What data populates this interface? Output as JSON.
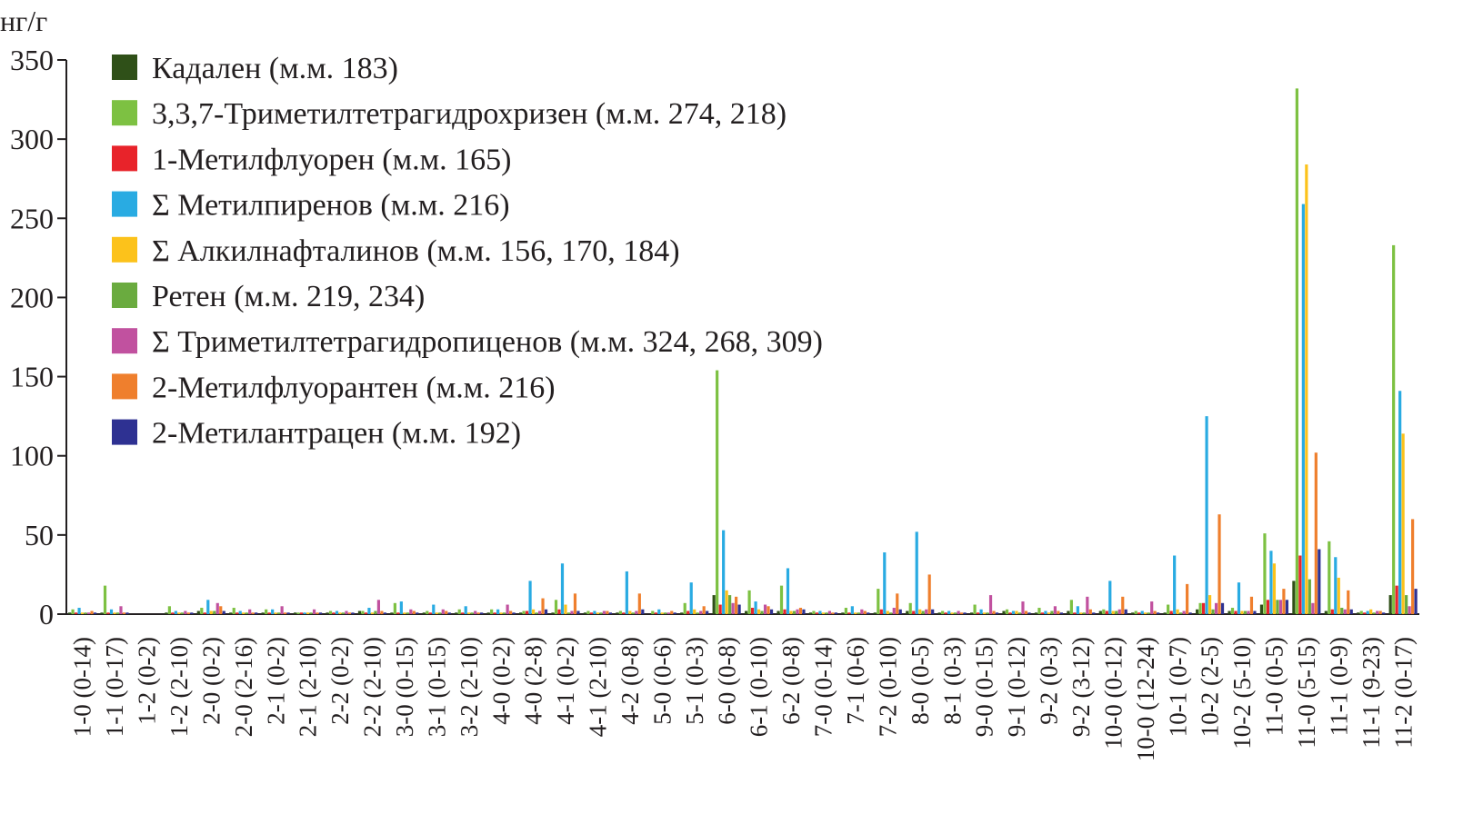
{
  "chart_data": {
    "type": "bar",
    "title": "",
    "xlabel": "",
    "ylabel": "нг/г",
    "ylim": [
      0,
      350
    ],
    "yticks": [
      0,
      50,
      100,
      150,
      200,
      250,
      300,
      350
    ],
    "grid": false,
    "legend_position": "top-left",
    "categories": [
      "1-0 (0-14)",
      "1-1 (0-17)",
      "1-2 (0-2)",
      "1-2 (2-10)",
      "2-0 (0-2)",
      "2-0 (2-16)",
      "2-1 (0-2)",
      "2-1 (2-10)",
      "2-2 (0-2)",
      "2-2 (2-10)",
      "3-0 (0-15)",
      "3-1 (0-15)",
      "3-2 (2-10)",
      "4-0 (0-2)",
      "4-0 (2-8)",
      "4-1 (0-2)",
      "4-1 (2-10)",
      "4-2 (0-8)",
      "5-0 (0-6)",
      "5-1 (0-3)",
      "6-0 (0-8)",
      "6-1 (0-10)",
      "6-2 (0-8)",
      "7-0 (0-14)",
      "7-1 (0-6)",
      "7-2 (0-10)",
      "8-0 (0-5)",
      "8-1 (0-3)",
      "9-0 (0-15)",
      "9-1 (0-12)",
      "9-2 (0-3)",
      "9-2 (3-12)",
      "10-0 (0-12)",
      "10-0 (12-24)",
      "10-1 (0-7)",
      "10-2 (2-5)",
      "10-2 (5-10)",
      "11-0 (0-5)",
      "11-0 (5-15)",
      "11-1 (0-9)",
      "11-1 (9-23)",
      "11-2 (0-17)"
    ],
    "series": [
      {
        "name": "Кадален (м.м. 183)",
        "color": "#2f5018",
        "values": [
          1,
          1,
          0,
          1,
          2,
          1,
          1,
          1,
          1,
          2,
          1,
          1,
          1,
          1,
          1,
          1,
          1,
          1,
          0,
          1,
          12,
          2,
          2,
          1,
          1,
          1,
          2,
          1,
          1,
          2,
          1,
          2,
          2,
          1,
          1,
          3,
          2,
          6,
          21,
          2,
          1,
          12
        ]
      },
      {
        "name": "3,3,7-Триметилтетрагидрохризен (м.м. 274, 218)",
        "color": "#7dc142",
        "values": [
          3,
          18,
          0,
          5,
          4,
          4,
          3,
          1,
          2,
          2,
          7,
          2,
          3,
          3,
          2,
          9,
          2,
          2,
          2,
          7,
          154,
          15,
          18,
          2,
          4,
          16,
          7,
          2,
          6,
          3,
          4,
          9,
          3,
          2,
          6,
          7,
          4,
          51,
          332,
          46,
          2,
          233
        ]
      },
      {
        "name": "1-Метилфлуорен (м.м. 165)",
        "color": "#e8232a",
        "values": [
          1,
          1,
          0,
          1,
          1,
          1,
          1,
          1,
          1,
          1,
          1,
          1,
          1,
          1,
          2,
          3,
          1,
          1,
          1,
          2,
          6,
          4,
          3,
          1,
          1,
          3,
          2,
          1,
          1,
          1,
          1,
          1,
          2,
          1,
          2,
          7,
          2,
          9,
          37,
          3,
          1,
          18
        ]
      },
      {
        "name": "Σ Метилпиренов (м.м. 216)",
        "color": "#29abe2",
        "values": [
          4,
          3,
          0,
          2,
          9,
          2,
          3,
          1,
          2,
          4,
          8,
          6,
          5,
          3,
          21,
          32,
          2,
          27,
          3,
          20,
          53,
          8,
          29,
          2,
          5,
          39,
          52,
          2,
          3,
          2,
          2,
          5,
          21,
          2,
          37,
          125,
          20,
          40,
          259,
          36,
          2,
          141
        ]
      },
      {
        "name": "Σ Алкилнафталинов (м.м. 156, 170, 184)",
        "color": "#fcc21b",
        "values": [
          1,
          1,
          0,
          1,
          2,
          1,
          1,
          1,
          1,
          1,
          1,
          1,
          1,
          1,
          3,
          6,
          1,
          2,
          1,
          3,
          15,
          3,
          2,
          1,
          1,
          2,
          3,
          1,
          1,
          2,
          1,
          1,
          2,
          1,
          3,
          12,
          2,
          32,
          284,
          23,
          3,
          114
        ]
      },
      {
        "name": "Ретен (м.м. 219, 234)",
        "color": "#6aab3f",
        "values": [
          1,
          1,
          0,
          1,
          2,
          1,
          1,
          1,
          1,
          2,
          1,
          1,
          1,
          1,
          1,
          1,
          1,
          1,
          1,
          1,
          12,
          2,
          2,
          1,
          1,
          1,
          2,
          1,
          1,
          1,
          2,
          1,
          2,
          1,
          1,
          3,
          2,
          9,
          22,
          4,
          1,
          12
        ]
      },
      {
        "name": "Σ Триметилтетрагидропиценов (м.м. 324, 268, 309)",
        "color": "#c1519f",
        "values": [
          1,
          5,
          0,
          2,
          7,
          3,
          5,
          3,
          2,
          9,
          3,
          3,
          2,
          6,
          2,
          2,
          2,
          2,
          1,
          2,
          7,
          6,
          3,
          2,
          3,
          4,
          3,
          2,
          12,
          8,
          5,
          11,
          3,
          8,
          2,
          7,
          2,
          9,
          7,
          3,
          2,
          5
        ]
      },
      {
        "name": "2-Метилфлуорантен (м.м. 216)",
        "color": "#ef7f2d",
        "values": [
          2,
          1,
          0,
          1,
          5,
          1,
          1,
          1,
          1,
          2,
          2,
          2,
          1,
          2,
          10,
          13,
          2,
          13,
          2,
          5,
          11,
          5,
          4,
          1,
          2,
          13,
          25,
          1,
          2,
          2,
          2,
          3,
          11,
          2,
          19,
          63,
          11,
          16,
          102,
          15,
          2,
          60
        ]
      },
      {
        "name": "2-Метилантрацен (м.м. 192)",
        "color": "#2e3192",
        "values": [
          1,
          1,
          0,
          1,
          2,
          1,
          1,
          1,
          1,
          1,
          1,
          1,
          1,
          1,
          3,
          2,
          1,
          3,
          1,
          2,
          6,
          3,
          3,
          1,
          1,
          3,
          3,
          1,
          1,
          1,
          1,
          1,
          3,
          1,
          1,
          7,
          2,
          9,
          41,
          3,
          1,
          16
        ]
      }
    ]
  }
}
